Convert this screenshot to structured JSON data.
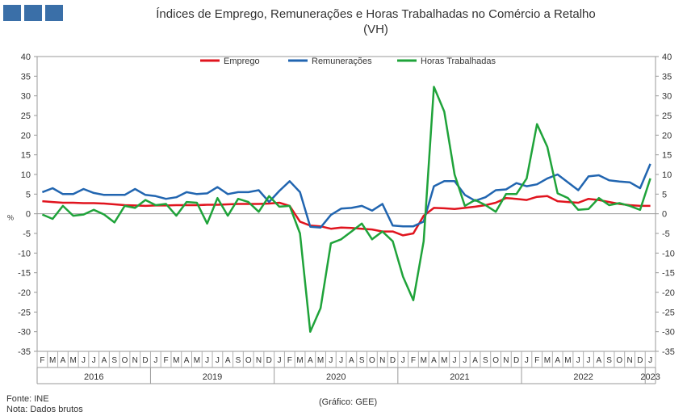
{
  "title_line1": "Índices de Emprego, Remunerações e Horas Trabalhadas no Comércio a Retalho",
  "title_line2": "(VH)",
  "source": "Fonte: INE",
  "note": "Nota: Dados brutos",
  "credit": "(Gráfico: GEE)",
  "chart_data": {
    "type": "line",
    "ylabel": "%",
    "ylim": [
      -35,
      40
    ],
    "ytick_step": 5,
    "legend_position": "top",
    "month_labels": [
      "F",
      "M",
      "A",
      "M",
      "J",
      "J",
      "A",
      "S",
      "O",
      "N",
      "D",
      "J",
      "F",
      "M",
      "A",
      "M",
      "J",
      "J",
      "A",
      "S",
      "O",
      "N",
      "D",
      "J",
      "F",
      "M",
      "A",
      "M",
      "J",
      "J",
      "A",
      "S",
      "O",
      "N",
      "D",
      "J",
      "F",
      "M",
      "A",
      "M",
      "J",
      "J",
      "A",
      "S",
      "O",
      "N",
      "D",
      "J",
      "F",
      "M",
      "A",
      "M",
      "J",
      "J",
      "A",
      "S",
      "O",
      "N",
      "D",
      "J"
    ],
    "year_labels": [
      {
        "label": "2016",
        "from": 0,
        "to": 10
      },
      {
        "label": "2019",
        "from": 11,
        "to": 22
      },
      {
        "label": "2020",
        "from": 23,
        "to": 34
      },
      {
        "label": "2021",
        "from": 35,
        "to": 46
      },
      {
        "label": "2022",
        "from": 47,
        "to": 58
      },
      {
        "label": "2023",
        "from": 59,
        "to": 59
      }
    ],
    "series": [
      {
        "name": "Emprego",
        "color": "#e0141e",
        "values": [
          3.2,
          3.0,
          2.8,
          2.8,
          2.7,
          2.7,
          2.6,
          2.4,
          2.2,
          2.1,
          2.0,
          2.1,
          2.1,
          2.2,
          2.2,
          2.2,
          2.3,
          2.3,
          2.4,
          2.5,
          2.5,
          2.5,
          2.6,
          2.8,
          2.0,
          -2.0,
          -3.0,
          -3.2,
          -3.8,
          -3.5,
          -3.6,
          -3.8,
          -4.0,
          -4.5,
          -4.5,
          -5.5,
          -5.0,
          -0.5,
          1.5,
          1.4,
          1.2,
          1.5,
          1.8,
          2.2,
          2.8,
          4.0,
          3.8,
          3.5,
          4.3,
          4.5,
          3.2,
          3.0,
          2.8,
          3.8,
          3.5,
          3.0,
          2.5,
          2.2,
          2.0,
          2.0
        ]
      },
      {
        "name": "Remunerações",
        "color": "#2165b0",
        "values": [
          5.5,
          6.5,
          5.0,
          5.0,
          6.3,
          5.3,
          4.8,
          4.8,
          4.8,
          6.3,
          4.8,
          4.5,
          3.8,
          4.2,
          5.5,
          5.0,
          5.2,
          6.8,
          5.0,
          5.5,
          5.5,
          6.0,
          3.0,
          5.8,
          8.3,
          5.5,
          -3.3,
          -3.5,
          -0.3,
          1.3,
          1.5,
          2.0,
          0.8,
          2.5,
          -3.0,
          -3.2,
          -3.2,
          -2.0,
          7.0,
          8.3,
          8.3,
          4.8,
          3.3,
          4.2,
          6.0,
          6.2,
          7.8,
          7.0,
          7.5,
          9.0,
          10.0,
          8.0,
          6.0,
          9.5,
          9.8,
          8.5,
          8.2,
          8.0,
          6.5,
          12.7
        ]
      },
      {
        "name": "Horas Trabalhadas",
        "color": "#1fa33a",
        "values": [
          -0.2,
          -1.3,
          2.0,
          -0.5,
          -0.2,
          1.0,
          -0.2,
          -2.2,
          2.0,
          1.5,
          3.5,
          2.2,
          2.5,
          -0.5,
          3.0,
          2.8,
          -2.5,
          4.0,
          -0.5,
          3.8,
          3.0,
          0.5,
          4.5,
          1.8,
          2.0,
          -5.0,
          -30.0,
          -24.0,
          -7.5,
          -6.5,
          -4.5,
          -2.5,
          -6.5,
          -4.5,
          -7.0,
          -16.0,
          -22.0,
          -7.0,
          32.3,
          26.0,
          10.0,
          2.0,
          3.5,
          2.2,
          0.5,
          5.0,
          5.0,
          9.0,
          22.8,
          17.0,
          5.2,
          4.0,
          1.0,
          1.2,
          4.0,
          2.2,
          2.7,
          2.0,
          1.0,
          9.0
        ]
      }
    ]
  }
}
